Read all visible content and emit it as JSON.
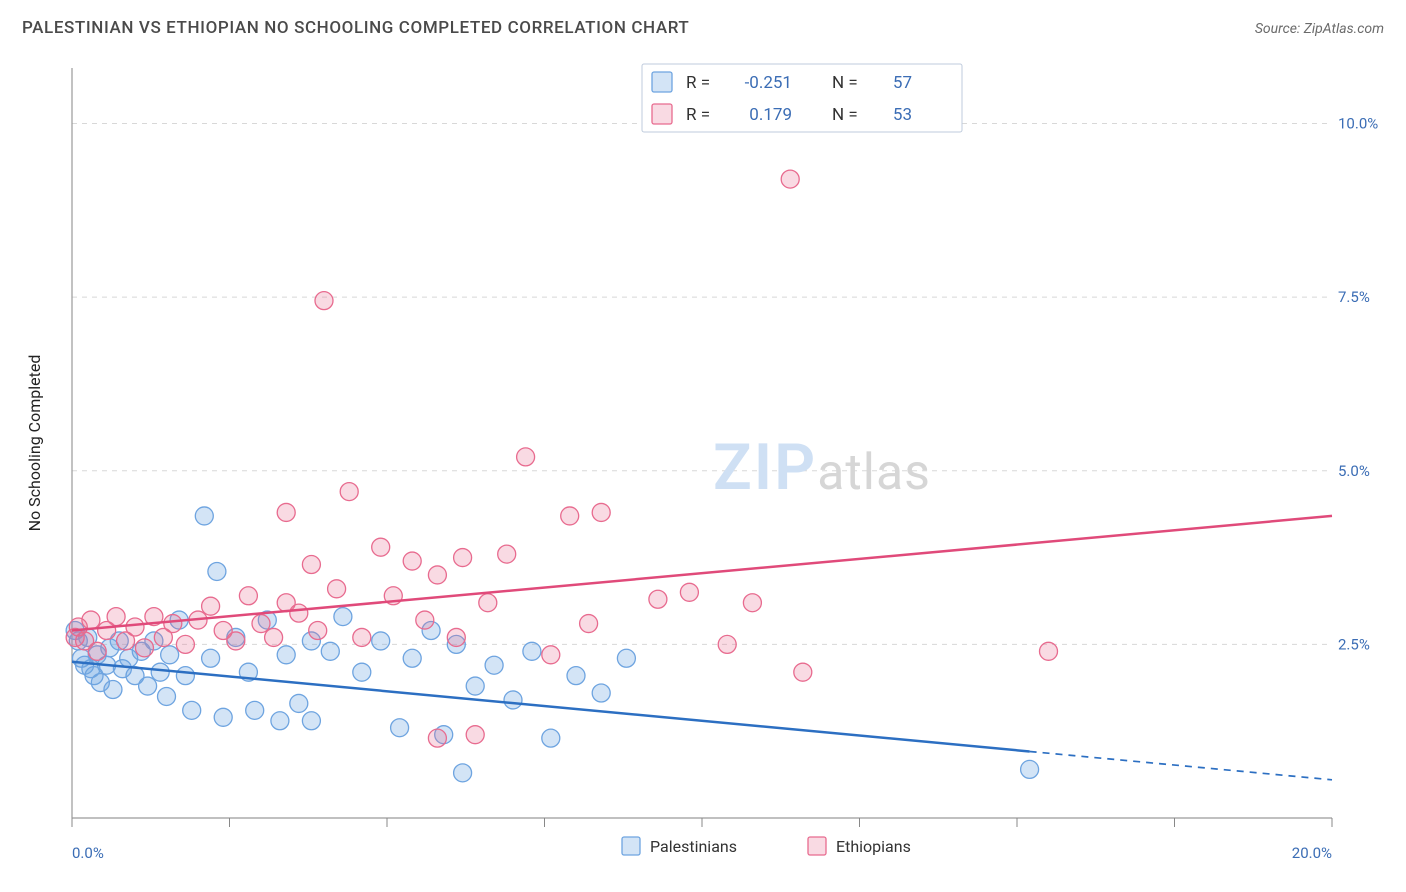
{
  "title": "PALESTINIAN VS ETHIOPIAN NO SCHOOLING COMPLETED CORRELATION CHART",
  "source": "Source: ZipAtlas.com",
  "ylabel": "No Schooling Completed",
  "watermark": {
    "zip": "ZIP",
    "atlas": "atlas"
  },
  "chart": {
    "type": "scatter",
    "background_color": "#ffffff",
    "grid_color": "#d8d8d8",
    "axis_color": "#9a9a9a",
    "tick_color": "#888888",
    "axis_label_color": "#3b6db5",
    "xlim": [
      0,
      20
    ],
    "ylim": [
      0,
      10.8
    ],
    "xticks": [
      0,
      2.5,
      5,
      7.5,
      10,
      12.5,
      15,
      17.5,
      20
    ],
    "yticks": [
      2.5,
      5.0,
      7.5,
      10.0
    ],
    "x_origin_label": "0.0%",
    "x_end_label": "20.0%",
    "ytick_labels": [
      "2.5%",
      "5.0%",
      "7.5%",
      "10.0%"
    ],
    "marker_radius": 9,
    "series": [
      {
        "name": "Palestinians",
        "color": "#6ea4e0",
        "fill": "rgba(110,164,224,0.30)",
        "stroke": "#6ea4e0",
        "R": "-0.251",
        "N": "57",
        "trend": {
          "y_at_x0": 2.25,
          "y_at_x20": 0.55,
          "solid_until_x": 15.2,
          "color": "#2c6fc2",
          "width": 2.5
        },
        "points": [
          [
            0.05,
            2.7
          ],
          [
            0.1,
            2.55
          ],
          [
            0.15,
            2.3
          ],
          [
            0.2,
            2.2
          ],
          [
            0.25,
            2.6
          ],
          [
            0.3,
            2.15
          ],
          [
            0.35,
            2.05
          ],
          [
            0.4,
            2.35
          ],
          [
            0.45,
            1.95
          ],
          [
            0.55,
            2.2
          ],
          [
            0.6,
            2.45
          ],
          [
            0.65,
            1.85
          ],
          [
            0.75,
            2.55
          ],
          [
            0.8,
            2.15
          ],
          [
            0.9,
            2.3
          ],
          [
            1.0,
            2.05
          ],
          [
            1.1,
            2.4
          ],
          [
            1.2,
            1.9
          ],
          [
            1.3,
            2.55
          ],
          [
            1.4,
            2.1
          ],
          [
            1.5,
            1.75
          ],
          [
            1.55,
            2.35
          ],
          [
            1.7,
            2.85
          ],
          [
            1.8,
            2.05
          ],
          [
            1.9,
            1.55
          ],
          [
            2.1,
            4.35
          ],
          [
            2.2,
            2.3
          ],
          [
            2.3,
            3.55
          ],
          [
            2.4,
            1.45
          ],
          [
            2.6,
            2.6
          ],
          [
            2.8,
            2.1
          ],
          [
            2.9,
            1.55
          ],
          [
            3.1,
            2.85
          ],
          [
            3.3,
            1.4
          ],
          [
            3.4,
            2.35
          ],
          [
            3.6,
            1.65
          ],
          [
            3.8,
            2.55
          ],
          [
            3.8,
            1.4
          ],
          [
            4.1,
            2.4
          ],
          [
            4.3,
            2.9
          ],
          [
            4.6,
            2.1
          ],
          [
            4.9,
            2.55
          ],
          [
            5.2,
            1.3
          ],
          [
            5.4,
            2.3
          ],
          [
            5.7,
            2.7
          ],
          [
            5.9,
            1.2
          ],
          [
            6.1,
            2.5
          ],
          [
            6.4,
            1.9
          ],
          [
            6.2,
            0.65
          ],
          [
            6.7,
            2.2
          ],
          [
            7.0,
            1.7
          ],
          [
            7.3,
            2.4
          ],
          [
            7.6,
            1.15
          ],
          [
            8.0,
            2.05
          ],
          [
            8.4,
            1.8
          ],
          [
            8.8,
            2.3
          ],
          [
            15.2,
            0.7
          ]
        ]
      },
      {
        "name": "Ethiopians",
        "color": "#e86b8f",
        "fill": "rgba(232,107,143,0.25)",
        "stroke": "#e86b8f",
        "R": "0.179",
        "N": "53",
        "trend": {
          "y_at_x0": 2.7,
          "y_at_x20": 4.35,
          "solid_until_x": 20,
          "color": "#e04a7a",
          "width": 2.5
        },
        "points": [
          [
            0.05,
            2.6
          ],
          [
            0.1,
            2.75
          ],
          [
            0.2,
            2.55
          ],
          [
            0.3,
            2.85
          ],
          [
            0.4,
            2.4
          ],
          [
            0.55,
            2.7
          ],
          [
            0.7,
            2.9
          ],
          [
            0.85,
            2.55
          ],
          [
            1.0,
            2.75
          ],
          [
            1.15,
            2.45
          ],
          [
            1.3,
            2.9
          ],
          [
            1.45,
            2.6
          ],
          [
            1.6,
            2.8
          ],
          [
            1.8,
            2.5
          ],
          [
            2.0,
            2.85
          ],
          [
            2.2,
            3.05
          ],
          [
            2.4,
            2.7
          ],
          [
            2.6,
            2.55
          ],
          [
            2.8,
            3.2
          ],
          [
            3.0,
            2.8
          ],
          [
            3.2,
            2.6
          ],
          [
            3.4,
            3.1
          ],
          [
            3.4,
            4.4
          ],
          [
            3.6,
            2.95
          ],
          [
            3.8,
            3.65
          ],
          [
            3.9,
            2.7
          ],
          [
            4.0,
            7.45
          ],
          [
            4.2,
            3.3
          ],
          [
            4.4,
            4.7
          ],
          [
            4.6,
            2.6
          ],
          [
            4.9,
            3.9
          ],
          [
            5.1,
            3.2
          ],
          [
            5.4,
            3.7
          ],
          [
            5.6,
            2.85
          ],
          [
            5.8,
            3.5
          ],
          [
            5.8,
            1.15
          ],
          [
            6.1,
            2.6
          ],
          [
            6.2,
            3.75
          ],
          [
            6.4,
            1.2
          ],
          [
            6.6,
            3.1
          ],
          [
            6.9,
            3.8
          ],
          [
            7.2,
            5.2
          ],
          [
            7.6,
            2.35
          ],
          [
            7.9,
            4.35
          ],
          [
            8.2,
            2.8
          ],
          [
            8.4,
            4.4
          ],
          [
            9.3,
            3.15
          ],
          [
            9.8,
            3.25
          ],
          [
            10.4,
            2.5
          ],
          [
            10.8,
            3.1
          ],
          [
            11.4,
            9.2
          ],
          [
            11.6,
            2.1
          ],
          [
            15.5,
            2.4
          ]
        ]
      }
    ],
    "legend": {
      "R_label": "R =",
      "N_label": "N ="
    },
    "bottom_legend": {
      "swatch_size": 18
    }
  }
}
